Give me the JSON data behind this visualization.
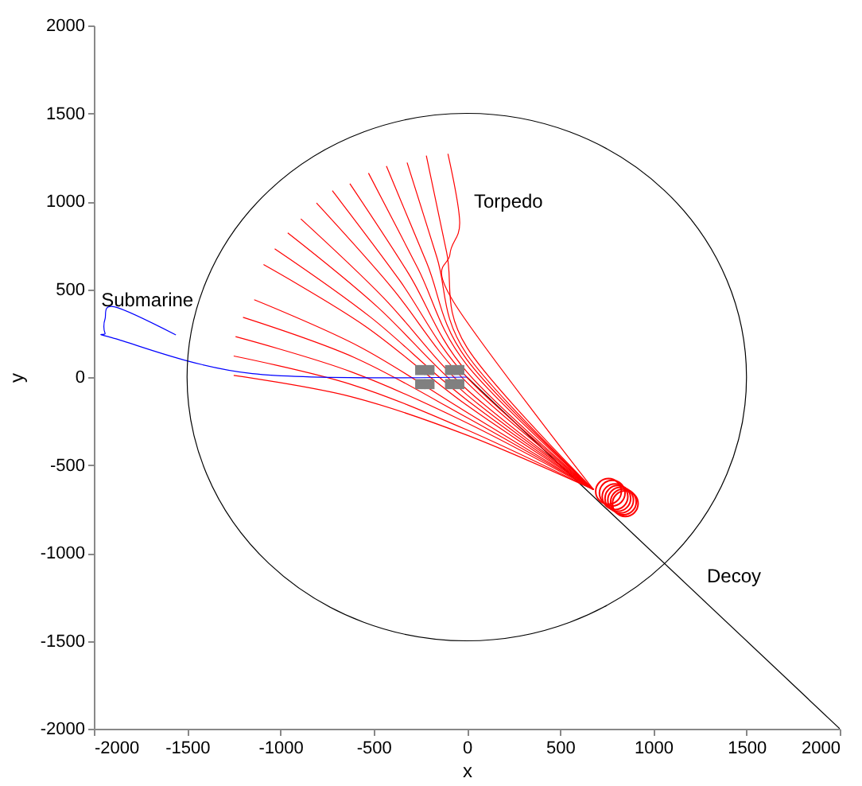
{
  "chart_data": {
    "type": "line",
    "xlabel": "x",
    "ylabel": "y",
    "xlim": [
      -2000,
      2000
    ],
    "ylim": [
      -2000,
      2000
    ],
    "xticks": [
      -2000,
      -1500,
      -1000,
      -500,
      0,
      500,
      1000,
      1500,
      2000
    ],
    "yticks": [
      -2000,
      -1500,
      -1000,
      -500,
      0,
      500,
      1000,
      1500,
      2000
    ],
    "line_style": "solid",
    "series": [
      {
        "name": "Decoy",
        "color": "#000000",
        "x": [
          0,
          2000
        ],
        "values": [
          0,
          -2000
        ]
      },
      {
        "color": "#ff0000",
        "x": [
          -1250,
          -625,
          0,
          680
        ],
        "values": [
          10,
          -110,
          -330,
          -640
        ]
      },
      {
        "color": "#ff0000",
        "x": [
          -1250,
          -625,
          0,
          680
        ],
        "values": [
          120,
          -40,
          -300,
          -640
        ]
      },
      {
        "color": "#ff0000",
        "x": [
          -1240,
          -620,
          0,
          680
        ],
        "values": [
          230,
          30,
          -260,
          -640
        ]
      },
      {
        "color": "#ff0000",
        "x": [
          -1200,
          -600,
          0,
          680
        ],
        "values": [
          340,
          110,
          -230,
          -640
        ]
      },
      {
        "color": "#ff0000",
        "x": [
          -1140,
          -570,
          0,
          680
        ],
        "values": [
          440,
          170,
          -200,
          -640
        ]
      },
      {
        "color": "#ff0000",
        "x": [
          -1090,
          -545,
          0,
          680
        ],
        "values": [
          640,
          290,
          -160,
          -640
        ]
      },
      {
        "color": "#ff0000",
        "x": [
          -1030,
          -515,
          0,
          680
        ],
        "values": [
          730,
          340,
          -130,
          -640
        ]
      },
      {
        "color": "#ff0000",
        "x": [
          -960,
          -480,
          0,
          680
        ],
        "values": [
          820,
          400,
          -100,
          -640
        ]
      },
      {
        "color": "#ff0000",
        "x": [
          -890,
          -445,
          0,
          680
        ],
        "values": [
          900,
          450,
          -70,
          -640
        ]
      },
      {
        "color": "#ff0000",
        "x": [
          -806,
          -403,
          0,
          680
        ],
        "values": [
          990,
          510,
          -30,
          -640
        ]
      },
      {
        "color": "#ff0000",
        "x": [
          -721,
          -360,
          0,
          680
        ],
        "values": [
          1060,
          550,
          0,
          -640
        ]
      },
      {
        "color": "#ff0000",
        "x": [
          -627,
          -313,
          0,
          680
        ],
        "values": [
          1100,
          590,
          30,
          -640
        ]
      },
      {
        "color": "#ff0000",
        "x": [
          -527,
          -263,
          0,
          680
        ],
        "values": [
          1160,
          620,
          70,
          -640
        ]
      },
      {
        "color": "#ff0000",
        "x": [
          -431,
          -215,
          0,
          680
        ],
        "values": [
          1200,
          650,
          100,
          -640
        ]
      },
      {
        "color": "#ff0000",
        "x": [
          -320,
          -160,
          0,
          680
        ],
        "values": [
          1220,
          680,
          130,
          -640
        ]
      },
      {
        "color": "#ff0000",
        "x": [
          -217,
          -108,
          0,
          680
        ],
        "values": [
          1260,
          710,
          170,
          -640
        ]
      },
      {
        "name": "Torpedo",
        "color": "#ff0000",
        "x": [
          -101,
          -38,
          -90,
          -72,
          680
        ],
        "values": [
          1270,
          880,
          700,
          430,
          -640
        ]
      },
      {
        "name": "Submarine",
        "color": "#0000ff",
        "x": [
          -1560,
          -1890,
          -1940,
          -1940,
          -1890,
          -1150,
          0
        ],
        "values": [
          240,
          400,
          330,
          250,
          220,
          20,
          0
        ]
      },
      {
        "type": "scatter",
        "color": "#808080",
        "marker": "square",
        "x": [
          -250,
          -250,
          -200,
          -200,
          -90,
          -90,
          -40,
          -40
        ],
        "values": [
          40,
          -40,
          40,
          -40,
          40,
          -40,
          40,
          -40
        ]
      },
      {
        "type": "scatter",
        "color": "#ff0000",
        "marker": "circle",
        "x": [
          760,
          780,
          795,
          810,
          825,
          840,
          850
        ],
        "values": [
          -650,
          -660,
          -680,
          -690,
          -700,
          -710,
          -720
        ]
      }
    ]
  }
}
